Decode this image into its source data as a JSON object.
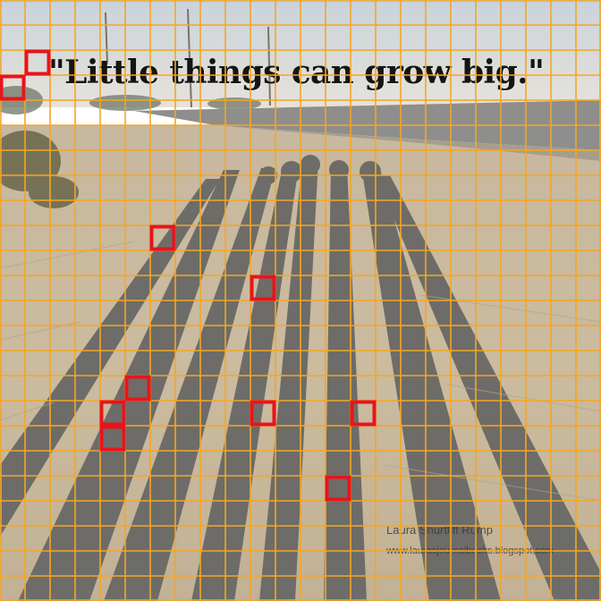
{
  "image": {
    "quote_text": "\"Little things can grow big.\"",
    "credit_name": "Laura Shurtliff Rump",
    "credit_url": "www.laurasjournalbooks.blogspot.com"
  },
  "overlay": {
    "grid_color": "#f5a623",
    "highlight_color": "#e8141b",
    "grid_cell_count": 24,
    "highlighted_cells": [
      {
        "col": 1,
        "row": 2
      },
      {
        "col": 0,
        "row": 3
      },
      {
        "col": 6,
        "row": 9
      },
      {
        "col": 10,
        "row": 11
      },
      {
        "col": 5,
        "row": 15
      },
      {
        "col": 4,
        "row": 16
      },
      {
        "col": 10,
        "row": 16
      },
      {
        "col": 14,
        "row": 16
      },
      {
        "col": 4,
        "row": 17
      },
      {
        "col": 13,
        "row": 19
      }
    ]
  }
}
